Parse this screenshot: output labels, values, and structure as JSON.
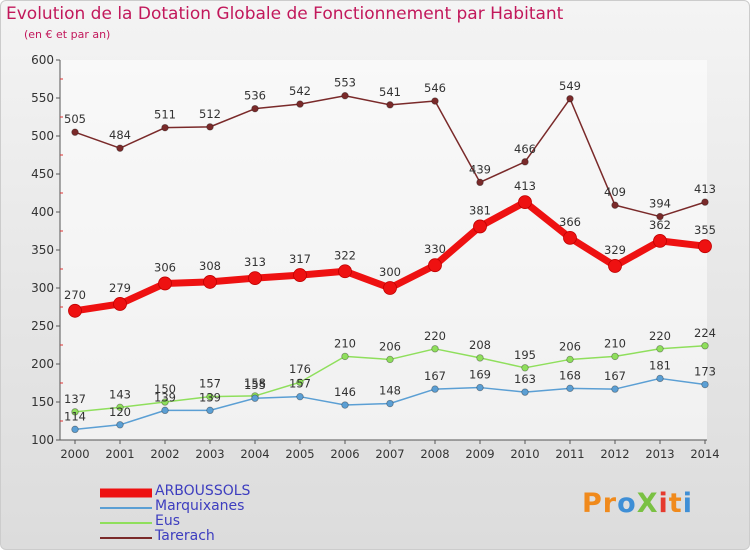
{
  "title": "Evolution de la Dotation Globale de Fonctionnement par Habitant",
  "subtitle": "(en € et par an)",
  "brand": {
    "text": "ProXiti",
    "letters": [
      "P",
      "r",
      "o",
      "X",
      "i",
      "t",
      "i"
    ],
    "colors": [
      "#f08a1c",
      "#f08a1c",
      "#3f8fd6",
      "#7ac143",
      "#e63a2e",
      "#f08a1c",
      "#3f8fd6"
    ]
  },
  "chart_data": {
    "type": "line",
    "title": "Evolution de la Dotation Globale de Fonctionnement par Habitant",
    "ylabel": "(en € et par an)",
    "xlabel": "",
    "ylim": [
      100,
      600
    ],
    "yticks": [
      100,
      150,
      200,
      250,
      300,
      350,
      400,
      450,
      500,
      550,
      600
    ],
    "categories": [
      "2000",
      "2001",
      "2002",
      "2003",
      "2004",
      "2005",
      "2006",
      "2007",
      "2008",
      "2009",
      "2010",
      "2011",
      "2012",
      "2013",
      "2014"
    ],
    "grid": false,
    "legend_position": "bottom-left",
    "series": [
      {
        "name": "Tarerach",
        "color": "#7a2a2a",
        "values": [
          505,
          484,
          511,
          512,
          536,
          542,
          553,
          541,
          546,
          439,
          466,
          549,
          409,
          394,
          413
        ]
      },
      {
        "name": "Eus",
        "color": "#8fdf5c",
        "values": [
          137,
          143,
          150,
          157,
          158,
          176,
          210,
          206,
          220,
          208,
          195,
          206,
          210,
          220,
          224
        ]
      },
      {
        "name": "Marquixanes",
        "color": "#5b9fd4",
        "values": [
          114,
          120,
          139,
          139,
          155,
          157,
          146,
          148,
          167,
          169,
          163,
          168,
          167,
          181,
          173
        ]
      },
      {
        "name": "ARBOUSSOLS",
        "color": "#ee1111",
        "values": [
          270,
          279,
          306,
          308,
          313,
          317,
          322,
          300,
          330,
          381,
          413,
          366,
          329,
          362,
          355
        ]
      }
    ]
  },
  "legend": [
    {
      "name": "ARBOUSSOLS",
      "color": "#ee1111"
    },
    {
      "name": "Marquixanes",
      "color": "#5b9fd4"
    },
    {
      "name": "Eus",
      "color": "#8fdf5c"
    },
    {
      "name": "Tarerach",
      "color": "#7a2a2a"
    }
  ]
}
